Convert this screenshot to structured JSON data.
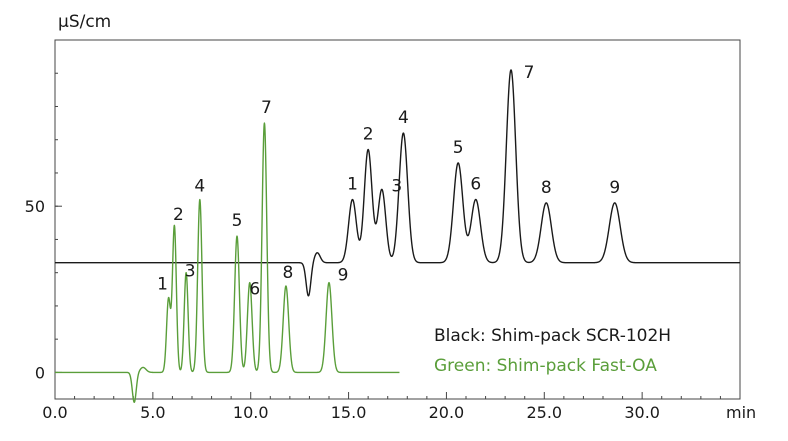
{
  "chart_data": {
    "type": "line",
    "title": "",
    "ylabel": "µS/cm",
    "xlabel": "min",
    "xlim": [
      0,
      35
    ],
    "ylim": [
      -8,
      100
    ],
    "x_ticks": [
      {
        "value": 0,
        "label": "0.0"
      },
      {
        "value": 5,
        "label": "5.0"
      },
      {
        "value": 10,
        "label": "10.0"
      },
      {
        "value": 15,
        "label": "15.0"
      },
      {
        "value": 20,
        "label": "20.0"
      },
      {
        "value": 25,
        "label": "25.0"
      },
      {
        "value": 30,
        "label": "30.0"
      }
    ],
    "y_ticks": [
      {
        "value": 0,
        "label": "0"
      },
      {
        "value": 50,
        "label": "50"
      }
    ],
    "grid": false,
    "legend_position": "bottom-right",
    "series": [
      {
        "name": "Black: Shim-pack SCR-102H",
        "color": "#1a1a1a",
        "baseline": 33,
        "x_range": [
          0,
          35
        ],
        "disturbance": [
          {
            "x": 12.95,
            "depth": -10,
            "width": 0.12
          },
          {
            "x": 13.4,
            "depth": 3,
            "width": 0.15
          }
        ],
        "peaks": [
          {
            "label": "1",
            "x": 15.2,
            "y": 52,
            "width": 0.2
          },
          {
            "label": "2",
            "x": 16.0,
            "y": 67,
            "width": 0.2
          },
          {
            "label": "3",
            "x": 16.7,
            "y": 55,
            "width": 0.2
          },
          {
            "label": "4",
            "x": 17.8,
            "y": 72,
            "width": 0.22
          },
          {
            "label": "5",
            "x": 20.6,
            "y": 63,
            "width": 0.24
          },
          {
            "label": "6",
            "x": 21.5,
            "y": 52,
            "width": 0.24
          },
          {
            "label": "7",
            "x": 23.3,
            "y": 91,
            "width": 0.24
          },
          {
            "label": "8",
            "x": 25.1,
            "y": 51,
            "width": 0.26
          },
          {
            "label": "9",
            "x": 28.6,
            "y": 51,
            "width": 0.28
          }
        ]
      },
      {
        "name": "Green: Shim-pack Fast-OA",
        "color": "#5a9e3a",
        "baseline": 0,
        "x_range": [
          0,
          17.6
        ],
        "disturbance": [
          {
            "x": 4.05,
            "depth": -9,
            "width": 0.1
          },
          {
            "x": 4.5,
            "depth": 1.5,
            "width": 0.15
          }
        ],
        "peaks": [
          {
            "label": "1",
            "x": 5.8,
            "y": 22,
            "width": 0.1
          },
          {
            "label": "2",
            "x": 6.1,
            "y": 44,
            "width": 0.1
          },
          {
            "label": "3",
            "x": 6.7,
            "y": 30,
            "width": 0.1
          },
          {
            "label": "4",
            "x": 7.4,
            "y": 52,
            "width": 0.11
          },
          {
            "label": "5",
            "x": 9.3,
            "y": 41,
            "width": 0.12
          },
          {
            "label": "6",
            "x": 9.95,
            "y": 27,
            "width": 0.12
          },
          {
            "label": "7",
            "x": 10.7,
            "y": 75,
            "width": 0.12
          },
          {
            "label": "8",
            "x": 11.8,
            "y": 26,
            "width": 0.14
          },
          {
            "label": "9",
            "x": 14.0,
            "y": 27,
            "width": 0.15
          }
        ]
      }
    ]
  }
}
